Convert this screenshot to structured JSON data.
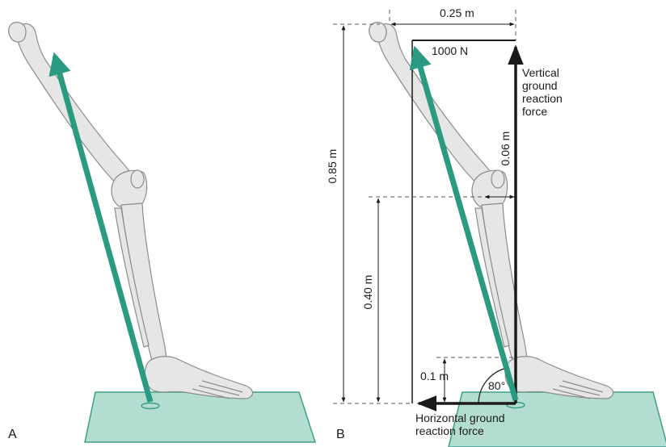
{
  "panel_a": {
    "letter": "A"
  },
  "panel_b": {
    "letter": "B",
    "force_label": "1000 N",
    "vertical_force_label": "Vertical ground reaction force",
    "horizontal_force_label": "Horizontal ground reaction force",
    "dimensions": {
      "width_top": "0.25 m",
      "hip_height": "0.85 m",
      "knee_height": "0.40 m",
      "ankle_height": "0.1 m",
      "knee_offset": "0.06 m"
    },
    "angle_label": "80°"
  },
  "colors": {
    "force_arrow": "#2a9a82",
    "floor_fill": "#b3ddd0",
    "floor_stroke": "#3f9f88",
    "bone_fill": "#e6e6e6",
    "bone_stroke": "#8c8c8c",
    "lines": "#1a1a1a"
  }
}
